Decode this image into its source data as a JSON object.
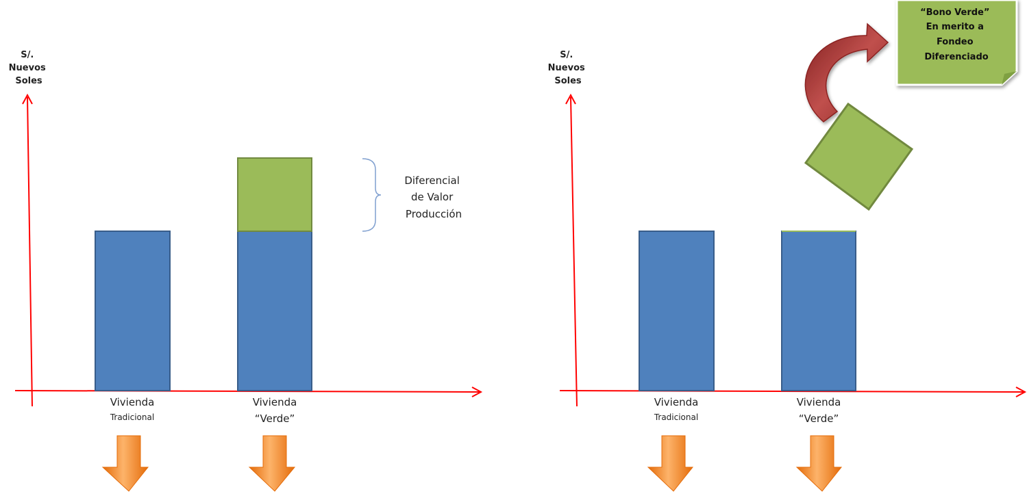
{
  "colors": {
    "axis": "#ff0000",
    "bar_base": "#4f81bd",
    "bar_base_stroke": "#385d8a",
    "bar_green": "#9bbb59",
    "bar_green_stroke": "#71893f",
    "down_arrow": "#f79646",
    "curved_arrow": "#c0504d"
  },
  "left_diagram": {
    "y_axis_label": [
      "S/.",
      "Nuevos",
      "Soles"
    ],
    "categories": [
      {
        "line1": "Vivienda",
        "line2": "Tradicional"
      },
      {
        "line1": "Vivienda",
        "line2": "“Verde”"
      }
    ],
    "brace_label": [
      "Diferencial",
      "de Valor",
      "Producción"
    ]
  },
  "right_diagram": {
    "y_axis_label": [
      "S/.",
      "Nuevos",
      "Soles"
    ],
    "categories": [
      {
        "line1": "Vivienda",
        "line2": "Tradicional"
      },
      {
        "line1": "Vivienda",
        "line2": "“Verde”"
      }
    ],
    "sticky_note": [
      "“Bono Verde”",
      "En merito a",
      "Fondeo",
      "Diferenciado"
    ]
  },
  "icons": {
    "down_arrow": "orange-down-arrow-icon",
    "curved_arrow": "red-curved-arrow-icon"
  }
}
